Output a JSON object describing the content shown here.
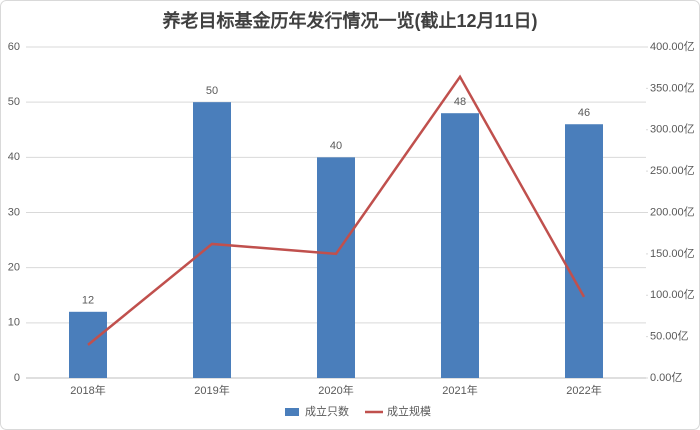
{
  "chart_data": {
    "type": "bar",
    "title": "养老目标基金历年发行情况一览(截止12月11日)",
    "categories": [
      "2018年",
      "2019年",
      "2020年",
      "2021年",
      "2022年"
    ],
    "series": [
      {
        "name": "成立只数",
        "type": "bar",
        "color": "#4a7ebb",
        "values": [
          12,
          50,
          40,
          48,
          46
        ]
      },
      {
        "name": "成立规模",
        "type": "line",
        "axis": "y2",
        "color": "#c0504d",
        "values": [
          40,
          162,
          150,
          364,
          98
        ]
      }
    ],
    "ylim": [
      0,
      60
    ],
    "yticks": [
      0,
      10,
      20,
      30,
      40,
      50,
      60
    ],
    "y2lim": [
      0,
      400
    ],
    "y2ticks": [
      {
        "value": 0,
        "label": "0.00亿"
      },
      {
        "value": 50,
        "label": "50.00亿"
      },
      {
        "value": 100,
        "label": "100.00亿"
      },
      {
        "value": 150,
        "label": "150.00亿"
      },
      {
        "value": 200,
        "label": "200.00亿"
      },
      {
        "value": 250,
        "label": "250.00亿"
      },
      {
        "value": 300,
        "label": "300.00亿"
      },
      {
        "value": 350,
        "label": "350.00亿"
      },
      {
        "value": 400,
        "label": "400.00亿"
      }
    ],
    "grid": true,
    "legend": "bottom"
  }
}
